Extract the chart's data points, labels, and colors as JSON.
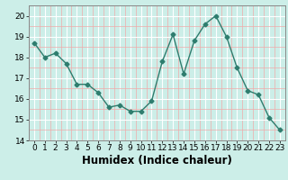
{
  "x": [
    0,
    1,
    2,
    3,
    4,
    5,
    6,
    7,
    8,
    9,
    10,
    11,
    12,
    13,
    14,
    15,
    16,
    17,
    18,
    19,
    20,
    21,
    22,
    23
  ],
  "y": [
    18.7,
    18.0,
    18.2,
    17.7,
    16.7,
    16.7,
    16.3,
    15.6,
    15.7,
    15.4,
    15.4,
    15.9,
    17.8,
    19.1,
    17.2,
    18.8,
    19.6,
    20.0,
    19.0,
    17.5,
    16.4,
    16.2,
    15.1,
    14.5
  ],
  "line_color": "#2e7d6e",
  "marker": "D",
  "markersize": 2.5,
  "linewidth": 1.0,
  "xlabel": "Humidex (Indice chaleur)",
  "xlim": [
    -0.5,
    23.5
  ],
  "ylim": [
    14,
    20.5
  ],
  "yticks": [
    14,
    15,
    16,
    17,
    18,
    19,
    20
  ],
  "xticks": [
    0,
    1,
    2,
    3,
    4,
    5,
    6,
    7,
    8,
    9,
    10,
    11,
    12,
    13,
    14,
    15,
    16,
    17,
    18,
    19,
    20,
    21,
    22,
    23
  ],
  "bg_color": "#cceee8",
  "major_grid_color": "#ffffff",
  "minor_grid_color": "#f0aaaa",
  "tick_fontsize": 6.5,
  "xlabel_fontsize": 8.5
}
